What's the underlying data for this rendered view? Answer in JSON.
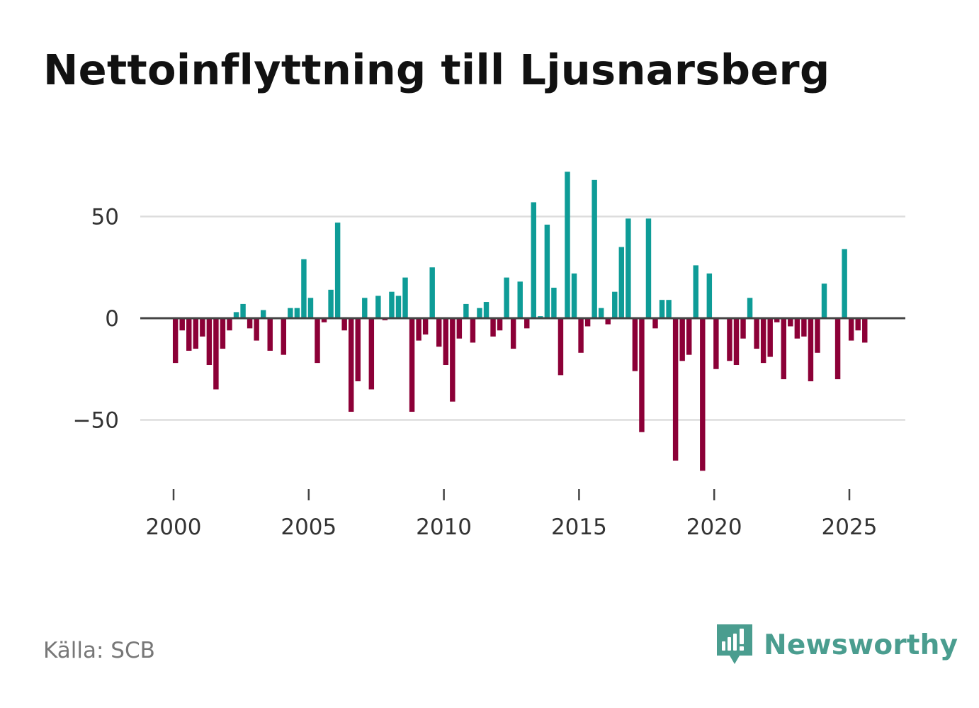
{
  "title": "Nettoinflyttning till Ljusnarsberg",
  "source": "Källa: SCB",
  "brand": {
    "name": "Newsworthy",
    "icon": "newsworthy-logo-icon",
    "color": "#4a9d8f"
  },
  "colors": {
    "positive": "#0e9c97",
    "negative": "#8c0037",
    "grid": "#dddddd",
    "zero_line": "#444444",
    "text": "#333333"
  },
  "chart_data": {
    "type": "bar",
    "title": "Nettoinflyttning till Ljusnarsberg",
    "xlabel": "",
    "ylabel": "",
    "x_unit": "quarter",
    "x_start": 2000.0,
    "x_step": 0.25,
    "xlim": [
      1999.25,
      2027.0
    ],
    "ylim": [
      -83,
      80
    ],
    "xticks": [
      2000,
      2005,
      2010,
      2015,
      2020,
      2025
    ],
    "xtick_labels": [
      "2000",
      "2005",
      "2010",
      "2015",
      "2020",
      "2025"
    ],
    "yticks": [
      -50,
      0,
      50
    ],
    "ytick_labels": [
      "−50",
      "0",
      "50"
    ],
    "grid": true,
    "values": [
      -22,
      -6,
      -16,
      -15,
      -9,
      -23,
      -35,
      -15,
      -6,
      3,
      7,
      -5,
      -11,
      4,
      -16,
      0,
      -18,
      5,
      5,
      29,
      10,
      -22,
      -2,
      14,
      47,
      -6,
      -46,
      -31,
      10,
      -35,
      11,
      -1,
      13,
      11,
      20,
      -46,
      -11,
      -8,
      25,
      -14,
      -23,
      -41,
      -10,
      7,
      -12,
      5,
      8,
      -9,
      -6,
      20,
      -15,
      18,
      -5,
      57,
      1,
      46,
      15,
      -28,
      72,
      22,
      -17,
      -4,
      68,
      5,
      -3,
      13,
      35,
      49,
      -26,
      -56,
      49,
      -5,
      9,
      9,
      -70,
      -21,
      -18,
      26,
      -75,
      22,
      -25,
      0,
      -21,
      -23,
      -10,
      10,
      -15,
      -22,
      -19,
      -2,
      -30,
      -4,
      -10,
      -9,
      -31,
      -17,
      17,
      0,
      -30,
      34,
      -11,
      -6,
      -12
    ]
  }
}
